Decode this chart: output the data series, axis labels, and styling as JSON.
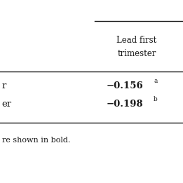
{
  "col_header_line1": "Lead first",
  "col_header_line2": "trimester",
  "row1_label": "r",
  "row2_label": "er",
  "row1_value": "−0.156",
  "row2_value": "−0.198",
  "row1_super": "a",
  "row2_super": "b",
  "footnote": "re shown in bold.",
  "bg_color": "#ffffff",
  "line_color": "#1a1a1a",
  "text_color": "#1a1a1a"
}
